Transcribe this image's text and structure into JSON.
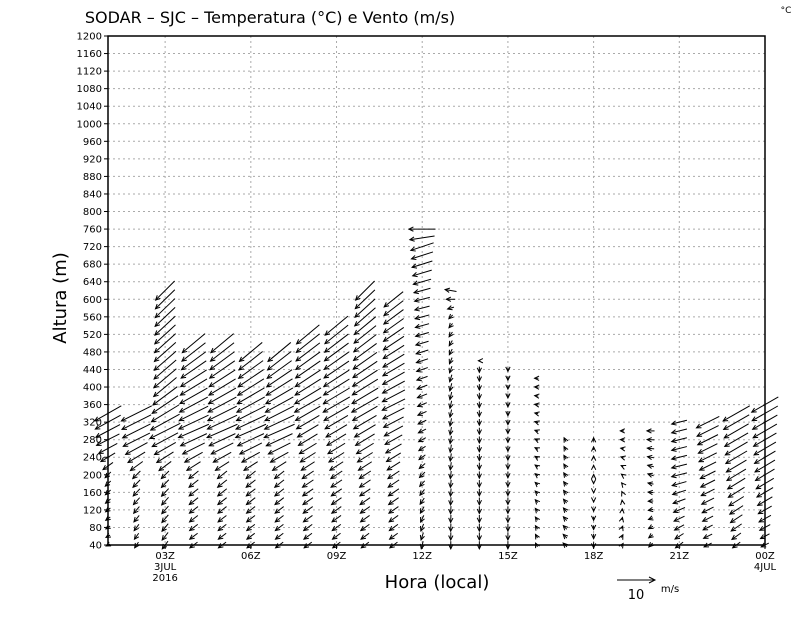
{
  "chart_data": {
    "type": "vector",
    "title": "SODAR – SJC – Temperatura (°C) e Vento (m/s)",
    "corner_unit": "°C",
    "xlabel": "Hora (local)",
    "ylabel": "Altura (m)",
    "ylim": [
      40,
      1200
    ],
    "y_ticks": [
      40,
      80,
      120,
      160,
      200,
      240,
      280,
      320,
      360,
      400,
      440,
      480,
      520,
      560,
      600,
      640,
      680,
      720,
      760,
      800,
      840,
      880,
      920,
      960,
      1000,
      1040,
      1080,
      1120,
      1160,
      1200
    ],
    "xlim_hours": [
      1,
      24
    ],
    "x_ticks": [
      {
        "hour": 3,
        "label": "03Z",
        "sub1": "3JUL",
        "sub2": "2016"
      },
      {
        "hour": 6,
        "label": "06Z"
      },
      {
        "hour": 9,
        "label": "09Z"
      },
      {
        "hour": 12,
        "label": "12Z"
      },
      {
        "hour": 15,
        "label": "15Z"
      },
      {
        "hour": 18,
        "label": "18Z"
      },
      {
        "hour": 21,
        "label": "21Z"
      },
      {
        "hour": 24,
        "label": "00Z",
        "sub1": "4JUL"
      }
    ],
    "grid": true,
    "level_step_m": 20,
    "reference_vector": {
      "value": "10",
      "unit": "m/s",
      "speed": 10
    },
    "columns": [
      {
        "hour": 1,
        "top": 340,
        "knots": [
          [
            40,
            -1,
            -0.5
          ],
          [
            200,
            -1.5,
            -1.5
          ],
          [
            280,
            -6,
            -3
          ],
          [
            340,
            -7,
            -4
          ]
        ]
      },
      {
        "hour": 2,
        "top": 340,
        "knots": [
          [
            40,
            -1,
            -1.5
          ],
          [
            200,
            -2,
            -2
          ],
          [
            280,
            -7,
            -3.5
          ],
          [
            340,
            -8,
            -4
          ]
        ]
      },
      {
        "hour": 3,
        "top": 620,
        "knots": [
          [
            40,
            -1.5,
            -2
          ],
          [
            200,
            -2,
            -2
          ],
          [
            300,
            -8,
            -4
          ],
          [
            400,
            -6,
            -5
          ],
          [
            620,
            -5,
            -5
          ]
        ]
      },
      {
        "hour": 4,
        "top": 500,
        "knots": [
          [
            40,
            -2,
            -1.5
          ],
          [
            200,
            -2.5,
            -2
          ],
          [
            300,
            -8,
            -3.5
          ],
          [
            500,
            -6,
            -5
          ]
        ]
      },
      {
        "hour": 5,
        "top": 500,
        "knots": [
          [
            40,
            -2,
            -1.5
          ],
          [
            200,
            -2.5,
            -2
          ],
          [
            300,
            -8,
            -3.5
          ],
          [
            500,
            -6,
            -5
          ]
        ]
      },
      {
        "hour": 6,
        "top": 480,
        "knots": [
          [
            40,
            -2,
            -1.5
          ],
          [
            200,
            -2.5,
            -2
          ],
          [
            300,
            -8,
            -3.5
          ],
          [
            480,
            -6,
            -5
          ]
        ]
      },
      {
        "hour": 7,
        "top": 480,
        "knots": [
          [
            40,
            -2,
            -1.5
          ],
          [
            200,
            -2.5,
            -2
          ],
          [
            300,
            -8,
            -3.5
          ],
          [
            480,
            -6,
            -5
          ]
        ]
      },
      {
        "hour": 8,
        "top": 520,
        "knots": [
          [
            40,
            -2,
            -1.5
          ],
          [
            200,
            -3,
            -2
          ],
          [
            360,
            -7,
            -4
          ],
          [
            520,
            -6,
            -5
          ]
        ]
      },
      {
        "hour": 9,
        "top": 540,
        "knots": [
          [
            40,
            -2,
            -1.5
          ],
          [
            200,
            -3,
            -2
          ],
          [
            360,
            -7,
            -4
          ],
          [
            540,
            -6,
            -5
          ]
        ]
      },
      {
        "hour": 10,
        "top": 620,
        "knots": [
          [
            40,
            -2,
            -1.5
          ],
          [
            200,
            -3,
            -2
          ],
          [
            360,
            -7,
            -4
          ],
          [
            620,
            -5,
            -5
          ]
        ]
      },
      {
        "hour": 11,
        "top": 600,
        "knots": [
          [
            40,
            -2,
            -1.5
          ],
          [
            200,
            -3,
            -2
          ],
          [
            360,
            -6,
            -3
          ],
          [
            600,
            -5,
            -4
          ]
        ]
      },
      {
        "hour": 12,
        "top": 760,
        "knots": [
          [
            40,
            -0.5,
            -2
          ],
          [
            300,
            -2,
            -1
          ],
          [
            600,
            -4,
            -1
          ],
          [
            720,
            -6,
            -2
          ],
          [
            760,
            -7,
            0
          ]
        ]
      },
      {
        "hour": 13,
        "top": 620,
        "knots": [
          [
            40,
            0,
            -2
          ],
          [
            400,
            -0.5,
            -2
          ],
          [
            560,
            -1,
            -1
          ],
          [
            620,
            -3,
            0.5
          ]
        ]
      },
      {
        "hour": 14,
        "top": 460,
        "knots": [
          [
            40,
            0,
            -2
          ],
          [
            440,
            0,
            -1.5
          ],
          [
            460,
            -0.5,
            0
          ]
        ]
      },
      {
        "hour": 15,
        "top": 440,
        "knots": [
          [
            40,
            0,
            -2
          ],
          [
            440,
            0,
            -1
          ]
        ]
      },
      {
        "hour": 16,
        "top": 420,
        "knots": [
          [
            40,
            -0.5,
            1
          ],
          [
            420,
            -1,
            0
          ]
        ]
      },
      {
        "hour": 17,
        "top": 280,
        "knots": [
          [
            40,
            -1,
            1
          ],
          [
            280,
            -0.5,
            1
          ]
        ]
      },
      {
        "hour": 18,
        "top": 280,
        "knots": [
          [
            40,
            0,
            -1.5
          ],
          [
            280,
            0,
            1
          ]
        ]
      },
      {
        "hour": 19,
        "top": 300,
        "knots": [
          [
            40,
            0.5,
            0.8
          ],
          [
            300,
            -1,
            0
          ]
        ]
      },
      {
        "hour": 20,
        "top": 300,
        "knots": [
          [
            40,
            -1,
            -1
          ],
          [
            200,
            -1.5,
            0.5
          ],
          [
            300,
            -2,
            0
          ]
        ]
      },
      {
        "hour": 21,
        "top": 320,
        "knots": [
          [
            40,
            -2,
            -1.5
          ],
          [
            200,
            -4,
            -1
          ],
          [
            320,
            -4,
            -1
          ]
        ]
      },
      {
        "hour": 22,
        "top": 320,
        "knots": [
          [
            40,
            -2,
            -1
          ],
          [
            200,
            -4,
            -2
          ],
          [
            320,
            -6,
            -3
          ]
        ]
      },
      {
        "hour": 23,
        "top": 340,
        "knots": [
          [
            40,
            -2,
            -1.5
          ],
          [
            200,
            -5,
            -3
          ],
          [
            340,
            -7,
            -4
          ]
        ]
      },
      {
        "hour": 24,
        "top": 360,
        "knots": [
          [
            40,
            -2,
            -1
          ],
          [
            200,
            -5,
            -3
          ],
          [
            360,
            -7,
            -4
          ]
        ]
      }
    ]
  }
}
